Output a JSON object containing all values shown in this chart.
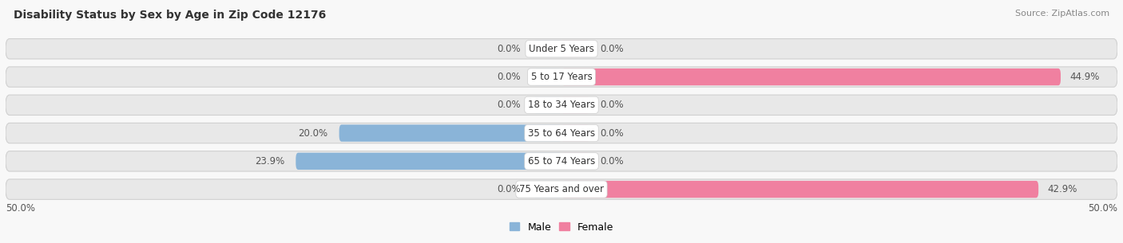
{
  "title": "Disability Status by Sex by Age in Zip Code 12176",
  "source": "Source: ZipAtlas.com",
  "categories": [
    "Under 5 Years",
    "5 to 17 Years",
    "18 to 34 Years",
    "35 to 64 Years",
    "65 to 74 Years",
    "75 Years and over"
  ],
  "male_values": [
    0.0,
    0.0,
    0.0,
    20.0,
    23.9,
    0.0
  ],
  "female_values": [
    0.0,
    44.9,
    0.0,
    0.0,
    0.0,
    42.9
  ],
  "male_color": "#8ab4d8",
  "female_color": "#f080a0",
  "male_stub_color": "#b8d0e8",
  "female_stub_color": "#f4b8cc",
  "bar_bg_color": "#e8e8e8",
  "bar_bg_border": "#d0d0d0",
  "axis_limit": 50.0,
  "background_color": "#f8f8f8",
  "label_fontsize": 8.5,
  "title_fontsize": 10,
  "source_fontsize": 8,
  "legend_fontsize": 9,
  "value_color": "#555555",
  "center_label_color": "#333333",
  "stub_size": 2.5
}
